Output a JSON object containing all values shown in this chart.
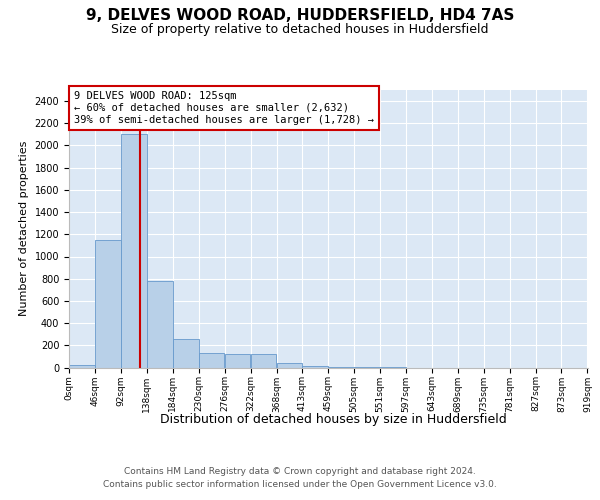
{
  "title_line1": "9, DELVES WOOD ROAD, HUDDERSFIELD, HD4 7AS",
  "title_line2": "Size of property relative to detached houses in Huddersfield",
  "xlabel": "Distribution of detached houses by size in Huddersfield",
  "ylabel": "Number of detached properties",
  "bar_color": "#b8d0e8",
  "bar_edge_color": "#6699cc",
  "background_color": "#dce8f5",
  "grid_color": "#ffffff",
  "bin_edges": [
    0,
    46,
    92,
    138,
    184,
    230,
    276,
    322,
    368,
    413,
    459,
    505,
    551,
    597,
    643,
    689,
    735,
    781,
    827,
    873,
    919
  ],
  "bin_labels": [
    "0sqm",
    "46sqm",
    "92sqm",
    "138sqm",
    "184sqm",
    "230sqm",
    "276sqm",
    "322sqm",
    "368sqm",
    "413sqm",
    "459sqm",
    "505sqm",
    "551sqm",
    "597sqm",
    "643sqm",
    "689sqm",
    "735sqm",
    "781sqm",
    "827sqm",
    "873sqm",
    "919sqm"
  ],
  "bar_heights": [
    25,
    1150,
    2100,
    780,
    260,
    130,
    120,
    125,
    38,
    12,
    2,
    8,
    2,
    0,
    0,
    0,
    0,
    0,
    0,
    0
  ],
  "ylim": [
    0,
    2500
  ],
  "yticks": [
    0,
    200,
    400,
    600,
    800,
    1000,
    1200,
    1400,
    1600,
    1800,
    2000,
    2200,
    2400
  ],
  "property_label": "9 DELVES WOOD ROAD: 125sqm",
  "annotation_line1": "← 60% of detached houses are smaller (2,632)",
  "annotation_line2": "39% of semi-detached houses are larger (1,728) →",
  "vline_x": 125,
  "vline_color": "#cc0000",
  "annotation_box_facecolor": "#ffffff",
  "annotation_box_edgecolor": "#cc0000",
  "footer_line1": "Contains HM Land Registry data © Crown copyright and database right 2024.",
  "footer_line2": "Contains public sector information licensed under the Open Government Licence v3.0.",
  "title_fontsize": 11,
  "subtitle_fontsize": 9,
  "tick_fontsize": 7,
  "ylabel_fontsize": 8,
  "xlabel_fontsize": 9,
  "annotation_fontsize": 7.5,
  "footer_fontsize": 6.5
}
